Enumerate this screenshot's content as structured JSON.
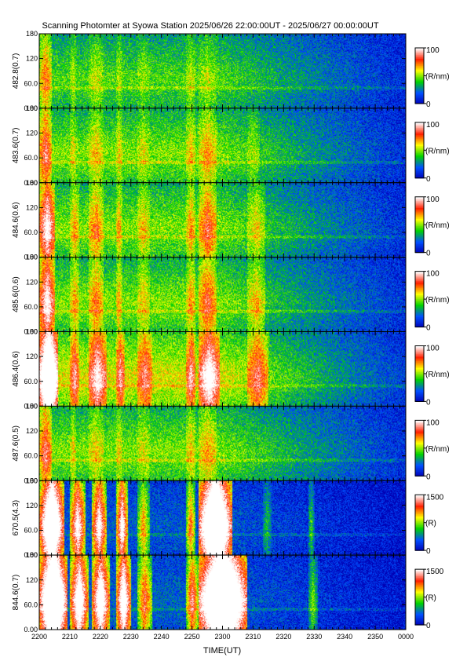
{
  "chart_data": {
    "type": "heatmap",
    "title": "Scanning Photomter at Syowa Station 2025/06/26 22:00:00UT - 2025/06/27 00:00:00UT",
    "xlabel": "TIME(UT)",
    "x_range_minutes": [
      0,
      120
    ],
    "x_tick_labels": [
      "2200",
      "2210",
      "2220",
      "2230",
      "2240",
      "2250",
      "2300",
      "2310",
      "2320",
      "2330",
      "2340",
      "2350",
      "0000"
    ],
    "y_range": [
      0,
      180
    ],
    "y_tick_labels": [
      "0.00",
      "60.0",
      "120",
      "180"
    ],
    "colormap": [
      "#0000b4",
      "#0050ff",
      "#00d200",
      "#ffff00",
      "#ff2000",
      "#ffffff"
    ],
    "panels": [
      {
        "ylabel": "482.8(0.7)",
        "unit": "(R/nm)",
        "cmin": "0",
        "cmax": "100",
        "base": 0.45,
        "enh": 0.35,
        "bands": [
          [
            0,
            4,
            1.0
          ],
          [
            10,
            12,
            0.35
          ],
          [
            16,
            21,
            0.4
          ],
          [
            25,
            27,
            0.35
          ],
          [
            32,
            36,
            0.25
          ],
          [
            48,
            51,
            0.4
          ],
          [
            52,
            58,
            0.35
          ]
        ]
      },
      {
        "ylabel": "483.6(0.7)",
        "unit": "(R/nm)",
        "cmin": "0",
        "cmax": "100",
        "base": 0.5,
        "enh": 0.4,
        "bands": [
          [
            0,
            4,
            1.1
          ],
          [
            10,
            12,
            0.35
          ],
          [
            16,
            21,
            0.45
          ],
          [
            25,
            27,
            0.4
          ],
          [
            32,
            36,
            0.3
          ],
          [
            48,
            51,
            0.45
          ],
          [
            52,
            58,
            0.6
          ],
          [
            68,
            72,
            0.3
          ]
        ]
      },
      {
        "ylabel": "484.6(0.6)",
        "unit": "(R/nm)",
        "cmin": "0",
        "cmax": "100",
        "base": 0.5,
        "enh": 0.5,
        "bands": [
          [
            0,
            5,
            1.3
          ],
          [
            10,
            13,
            0.45
          ],
          [
            16,
            21,
            0.6
          ],
          [
            25,
            27,
            0.45
          ],
          [
            32,
            36,
            0.35
          ],
          [
            48,
            51,
            0.5
          ],
          [
            52,
            58,
            0.75
          ],
          [
            68,
            74,
            0.45
          ]
        ]
      },
      {
        "ylabel": "485.6(0.6)",
        "unit": "(R/nm)",
        "cmin": "0",
        "cmax": "100",
        "base": 0.5,
        "enh": 0.5,
        "bands": [
          [
            0,
            5,
            1.3
          ],
          [
            10,
            13,
            0.45
          ],
          [
            16,
            21,
            0.6
          ],
          [
            25,
            27,
            0.45
          ],
          [
            32,
            36,
            0.35
          ],
          [
            48,
            51,
            0.5
          ],
          [
            52,
            58,
            0.75
          ],
          [
            68,
            74,
            0.55
          ]
        ]
      },
      {
        "ylabel": "486.4(0.6)",
        "unit": "(R/nm)",
        "cmin": "0",
        "cmax": "100",
        "base": 0.6,
        "enh": 0.7,
        "bands": [
          [
            0,
            6,
            1.5
          ],
          [
            10,
            13,
            0.55
          ],
          [
            16,
            22,
            0.75
          ],
          [
            25,
            28,
            0.55
          ],
          [
            32,
            37,
            0.5
          ],
          [
            48,
            51,
            0.6
          ],
          [
            52,
            59,
            0.9
          ],
          [
            68,
            75,
            0.6
          ]
        ]
      },
      {
        "ylabel": "487.6(0.5)",
        "unit": "(R/nm)",
        "cmin": "0",
        "cmax": "100",
        "base": 0.5,
        "enh": 0.4,
        "bands": [
          [
            0,
            4,
            1.1
          ],
          [
            10,
            12,
            0.35
          ],
          [
            16,
            21,
            0.4
          ],
          [
            25,
            27,
            0.35
          ],
          [
            32,
            36,
            0.3
          ],
          [
            48,
            51,
            0.45
          ],
          [
            52,
            58,
            0.55
          ]
        ]
      },
      {
        "ylabel": "670.5(4.3)",
        "unit": "(R)",
        "cmin": "0",
        "cmax": "1500",
        "base": 0.2,
        "enh": 0.9,
        "bands": [
          [
            0,
            8,
            1.6
          ],
          [
            10,
            15,
            1.1
          ],
          [
            17,
            22,
            1.1
          ],
          [
            25,
            29,
            1.1
          ],
          [
            32,
            36,
            0.6
          ],
          [
            48,
            51,
            0.7
          ],
          [
            52,
            63,
            1.8
          ],
          [
            73,
            76,
            0.25
          ],
          [
            88,
            90,
            0.35
          ]
        ]
      },
      {
        "ylabel": "844.6(0.7)",
        "unit": "(R)",
        "cmin": "0",
        "cmax": "1500",
        "base": 0.22,
        "enh": 0.95,
        "bands": [
          [
            0,
            9,
            1.7
          ],
          [
            10,
            16,
            1.2
          ],
          [
            17,
            23,
            1.2
          ],
          [
            25,
            30,
            1.2
          ],
          [
            32,
            37,
            0.7
          ],
          [
            48,
            52,
            0.8
          ],
          [
            52,
            68,
            1.8
          ],
          [
            88,
            91,
            0.4
          ]
        ]
      }
    ]
  }
}
